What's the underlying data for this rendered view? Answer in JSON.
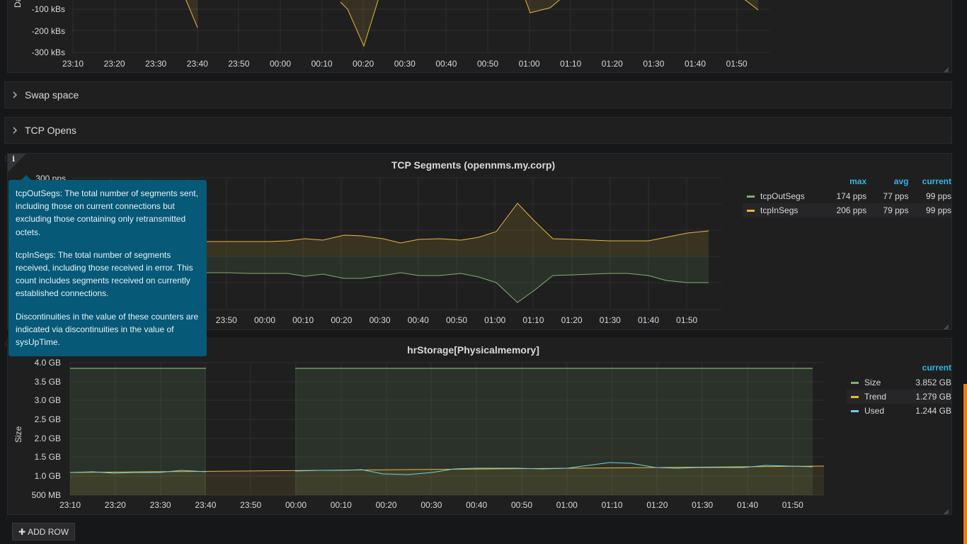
{
  "top_panel": {
    "ylabel": "Da",
    "yticks": [
      "-100 kBs",
      "-200 kBs",
      "-300 kBs"
    ],
    "xticks": [
      "23:10",
      "23:20",
      "23:30",
      "23:40",
      "23:50",
      "00:00",
      "00:10",
      "00:20",
      "00:30",
      "00:40",
      "00:50",
      "01:00",
      "01:10",
      "01:20",
      "01:30",
      "01:40",
      "01:50"
    ]
  },
  "rows": [
    {
      "title": "Swap space"
    },
    {
      "title": "TCP Opens"
    }
  ],
  "tcp_panel": {
    "title": "TCP Segments (opennms.my.corp)",
    "y_top_label": "300 pps",
    "info_icon": "i",
    "tooltip": [
      "tcpOutSegs: The total number of segments sent, including those on current connections but excluding those containing only retransmitted octets.",
      "tcpInSegs: The total number of segments received, including those received in error. This count includes segments received on currently established connections.",
      "Discontinuities in the value of these counters are indicated via discontinuities in the value of sysUpTime."
    ],
    "xticks_visible": [
      "23:50",
      "00:00",
      "00:10",
      "00:20",
      "00:30",
      "00:40",
      "00:50",
      "01:00",
      "01:10",
      "01:20",
      "01:30",
      "01:40",
      "01:50"
    ],
    "legend": {
      "headers": [
        "max",
        "avg",
        "current"
      ],
      "rows": [
        {
          "name": "tcpOutSegs",
          "color": "#7eb26d",
          "max": "174 pps",
          "avg": "77 pps",
          "current": "99 pps"
        },
        {
          "name": "tcpInSegs",
          "color": "#eab839",
          "max": "206 pps",
          "avg": "79 pps",
          "current": "99 pps"
        }
      ]
    }
  },
  "mem_panel": {
    "title": "hrStorage[Physicalmemory]",
    "ylabel": "Size",
    "yticks": [
      "4.0 GB",
      "3.5 GB",
      "3.0 GB",
      "2.5 GB",
      "2.0 GB",
      "1.5 GB",
      "1.0 GB",
      "500 MB"
    ],
    "xticks": [
      "23:10",
      "23:20",
      "23:30",
      "23:40",
      "23:50",
      "00:00",
      "00:10",
      "00:20",
      "00:30",
      "00:40",
      "00:50",
      "01:00",
      "01:10",
      "01:20",
      "01:30",
      "01:40",
      "01:50"
    ],
    "legend": {
      "headers": [
        "current"
      ],
      "rows": [
        {
          "name": "Size",
          "color": "#7eb26d",
          "current": "3.852 GB"
        },
        {
          "name": "Trend",
          "color": "#eab839",
          "current": "1.279 GB"
        },
        {
          "name": "Used",
          "color": "#6ed0e0",
          "current": "1.244 GB"
        }
      ]
    }
  },
  "add_row": {
    "label": "ADD ROW",
    "icon": "plus-icon"
  },
  "colors": {
    "accent": "#33b5e5",
    "tooltip_bg": "#065977",
    "out_segs": "#7eb26d",
    "in_segs": "#eab839",
    "used": "#6ed0e0"
  }
}
